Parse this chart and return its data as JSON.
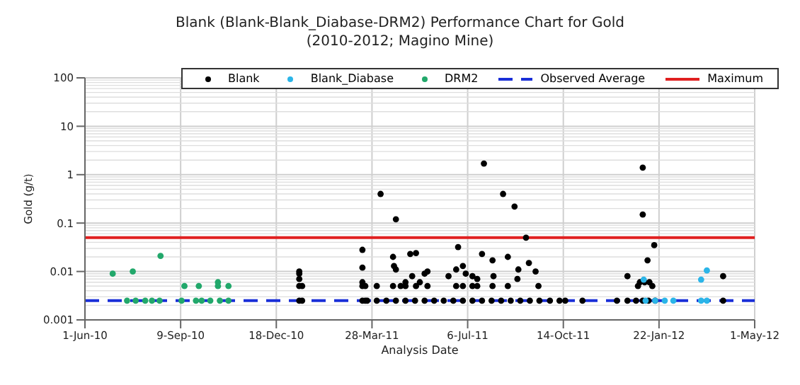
{
  "chart_data": {
    "type": "scatter",
    "title": "Blank (Blank-Blank_Diabase-DRM2) Performance Chart for Gold",
    "subtitle": "(2010-2012;  Magino Mine)",
    "xlabel": "Analysis Date",
    "ylabel": "Gold (g/t)",
    "series": [
      {
        "name": "Blank",
        "color": "#000000",
        "x": [
          "2011-01-11",
          "2011-01-11",
          "2011-01-11",
          "2011-01-11",
          "2011-01-11",
          "2011-01-14",
          "2011-01-14",
          "2011-03-18",
          "2011-03-18",
          "2011-03-18",
          "2011-03-18",
          "2011-03-18",
          "2011-03-21",
          "2011-03-21",
          "2011-04-02",
          "2011-04-06",
          "2011-04-19",
          "2011-04-19",
          "2011-04-20",
          "2011-04-22",
          "2011-04-22",
          "2011-04-27",
          "2011-05-02",
          "2011-05-02",
          "2011-05-07",
          "2011-05-09",
          "2011-05-13",
          "2011-05-13",
          "2011-05-17",
          "2011-05-22",
          "2011-05-25",
          "2011-05-25",
          "2011-06-16",
          "2011-06-24",
          "2011-06-24",
          "2011-06-26",
          "2011-07-01",
          "2011-07-01",
          "2011-07-04",
          "2011-07-11",
          "2011-07-11",
          "2011-07-16",
          "2011-07-16",
          "2011-07-21",
          "2011-07-23",
          "2011-08-01",
          "2011-08-01",
          "2011-08-02",
          "2011-08-12",
          "2011-08-17",
          "2011-08-17",
          "2011-08-24",
          "2011-08-27",
          "2011-08-28",
          "2011-09-05",
          "2011-09-08",
          "2011-09-15",
          "2011-09-18",
          "2011-03-23",
          "2011-04-02",
          "2011-04-12",
          "2011-04-22",
          "2011-05-02",
          "2011-05-12",
          "2011-05-22",
          "2011-06-01",
          "2011-06-11",
          "2011-06-21",
          "2011-07-01",
          "2011-07-11",
          "2011-07-21",
          "2011-07-31",
          "2011-08-10",
          "2011-08-20",
          "2011-08-30",
          "2011-09-09",
          "2011-09-19",
          "2011-09-30",
          "2011-10-10",
          "2011-10-16",
          "2011-11-03",
          "2011-12-09",
          "2011-12-20",
          "2011-12-29",
          "2012-01-05",
          "2012-01-11",
          "2012-01-18",
          "2012-03-29",
          "2011-12-20",
          "2012-01-05",
          "2012-01-05",
          "2012-01-10",
          "2012-01-17",
          "2012-01-02",
          "2012-01-07",
          "2012-01-12",
          "2011-12-31",
          "2012-01-15",
          "2012-03-29"
        ],
        "values": [
          0.01,
          0.009,
          0.007,
          0.005,
          0.0025,
          0.005,
          0.0025,
          0.028,
          0.012,
          0.006,
          0.005,
          0.0025,
          0.005,
          0.0025,
          0.005,
          0.4,
          0.02,
          0.005,
          0.013,
          0.12,
          0.011,
          0.005,
          0.005,
          0.006,
          0.023,
          0.008,
          0.024,
          0.005,
          0.006,
          0.009,
          0.01,
          0.005,
          0.008,
          0.011,
          0.005,
          0.032,
          0.013,
          0.005,
          0.009,
          0.008,
          0.005,
          0.007,
          0.005,
          0.023,
          1.7,
          0.017,
          0.005,
          0.008,
          0.4,
          0.02,
          0.005,
          0.22,
          0.007,
          0.011,
          0.05,
          0.015,
          0.01,
          0.005,
          0.0025,
          0.0025,
          0.0025,
          0.0025,
          0.0025,
          0.0025,
          0.0025,
          0.0025,
          0.0025,
          0.0025,
          0.0025,
          0.0025,
          0.0025,
          0.0025,
          0.0025,
          0.0025,
          0.0025,
          0.0025,
          0.0025,
          0.0025,
          0.0025,
          0.0025,
          0.0025,
          0.0025,
          0.0025,
          0.0025,
          0.0025,
          0.0025,
          0.0025,
          0.0025,
          0.008,
          1.4,
          0.15,
          0.017,
          0.035,
          0.006,
          0.006,
          0.006,
          0.005,
          0.005,
          0.008
        ]
      },
      {
        "name": "Blank_Diabase",
        "color": "#2bb5e8",
        "x": [
          "2012-01-06",
          "2012-03-06",
          "2012-03-12",
          "2012-01-08",
          "2012-01-18",
          "2012-01-28",
          "2012-02-06",
          "2012-03-06",
          "2012-03-12"
        ],
        "values": [
          0.0068,
          0.0068,
          0.0105,
          0.0025,
          0.0025,
          0.0025,
          0.0025,
          0.0025,
          0.0025
        ]
      },
      {
        "name": "DRM2",
        "color": "#22a86b",
        "x": [
          "2010-06-30",
          "2010-07-21",
          "2010-08-19",
          "2010-09-13",
          "2010-09-28",
          "2010-10-18",
          "2010-10-18",
          "2010-10-29",
          "2010-07-15",
          "2010-07-24",
          "2010-08-03",
          "2010-08-10",
          "2010-08-18",
          "2010-09-10",
          "2010-09-25",
          "2010-10-01",
          "2010-10-10",
          "2010-10-20",
          "2010-10-29"
        ],
        "values": [
          0.009,
          0.01,
          0.021,
          0.005,
          0.005,
          0.006,
          0.005,
          0.005,
          0.0025,
          0.0025,
          0.0025,
          0.0025,
          0.0025,
          0.0025,
          0.0025,
          0.0025,
          0.0025,
          0.0025,
          0.0025
        ]
      }
    ],
    "ref_lines": [
      {
        "axis": "y",
        "value": 0.0025,
        "label": "Observed Average",
        "color": "#1a2fd8",
        "line_style": "dashed"
      },
      {
        "axis": "y",
        "value": 0.05,
        "label": "Maximum",
        "color": "#e02020",
        "line_style": "solid"
      }
    ],
    "xlim": [
      "2010-06-01",
      "2012-05-01"
    ],
    "xticks": [
      {
        "value": "2010-06-01",
        "label": "1-Jun-10"
      },
      {
        "value": "2010-09-09",
        "label": "9-Sep-10"
      },
      {
        "value": "2010-12-18",
        "label": "18-Dec-10"
      },
      {
        "value": "2011-03-28",
        "label": "28-Mar-11"
      },
      {
        "value": "2011-07-06",
        "label": "6-Jul-11"
      },
      {
        "value": "2011-10-14",
        "label": "14-Oct-11"
      },
      {
        "value": "2012-01-22",
        "label": "22-Jan-12"
      },
      {
        "value": "2012-05-01",
        "label": "1-May-12"
      }
    ],
    "ylim": [
      0.001,
      100
    ],
    "yticks": [
      0.001,
      0.01,
      0.1,
      1,
      10,
      100
    ],
    "log": "y",
    "grid": true,
    "legend": "top",
    "marker": "circle"
  }
}
